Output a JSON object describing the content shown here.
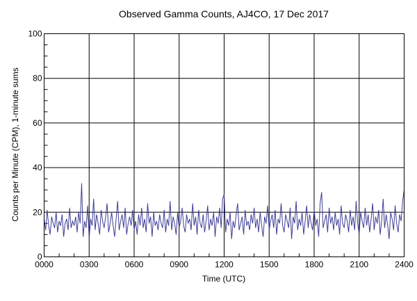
{
  "chart_data": {
    "type": "line",
    "title": "Observed Gamma Counts, AJ4CO, 17 Dec 2017",
    "xlabel": "Time (UTC)",
    "ylabel": "Counts per Minute (CPM), 1-minute sums",
    "x_ticks": [
      "0000",
      "0300",
      "0600",
      "0900",
      "1200",
      "1500",
      "1800",
      "2100",
      "2400"
    ],
    "y_ticks": [
      0,
      20,
      40,
      60,
      80,
      100
    ],
    "ylim": [
      0,
      100
    ],
    "x_start": "0000",
    "x_end": "2400",
    "grid": true,
    "line_color": "#3c3c96",
    "values": [
      17,
      12,
      21,
      14,
      10,
      18,
      15,
      13,
      20,
      11,
      16,
      14,
      19,
      9,
      15,
      17,
      12,
      22,
      13,
      16,
      14,
      18,
      11,
      20,
      15,
      33,
      9,
      16,
      13,
      23,
      8,
      17,
      14,
      26,
      12,
      19,
      15,
      10,
      21,
      16,
      13,
      18,
      24,
      11,
      15,
      20,
      14,
      9,
      17,
      25,
      12,
      16,
      19,
      13,
      22,
      10,
      15,
      18,
      14,
      21,
      12,
      16,
      10,
      19,
      14,
      22,
      13,
      17,
      11,
      24,
      15,
      18,
      9,
      20,
      14,
      16,
      12,
      19,
      15,
      13,
      21,
      11,
      17,
      14,
      25,
      12,
      18,
      15,
      10,
      20,
      13,
      16,
      22,
      14,
      11,
      19,
      15,
      17,
      12,
      24,
      14,
      18,
      10,
      21,
      15,
      13,
      19,
      11,
      16,
      23,
      12,
      17,
      14,
      20,
      9,
      18,
      15,
      22,
      13,
      26,
      28,
      11,
      17,
      14,
      20,
      8,
      16,
      13,
      19,
      24,
      12,
      15,
      18,
      10,
      21,
      14,
      16,
      12,
      19,
      15,
      22,
      13,
      17,
      11,
      20,
      14,
      9,
      18,
      15,
      23,
      12,
      16,
      19,
      13,
      21,
      10,
      17,
      15,
      24,
      14,
      11,
      19,
      16,
      13,
      22,
      8,
      18,
      15,
      25,
      12,
      17,
      14,
      20,
      10,
      16,
      23,
      13,
      19,
      15,
      12,
      21,
      14,
      17,
      9,
      24,
      29,
      13,
      16,
      19,
      11,
      22,
      15,
      18,
      12,
      20,
      14,
      17,
      10,
      23,
      15,
      13,
      19,
      16,
      11,
      21,
      14,
      18,
      12,
      25,
      15,
      10,
      20,
      16,
      13,
      22,
      14,
      19,
      11,
      17,
      24,
      12,
      18,
      15,
      21,
      10,
      16,
      26,
      13,
      19,
      14,
      8,
      20,
      17,
      12,
      23,
      15,
      11,
      19,
      16,
      25,
      30
    ]
  }
}
